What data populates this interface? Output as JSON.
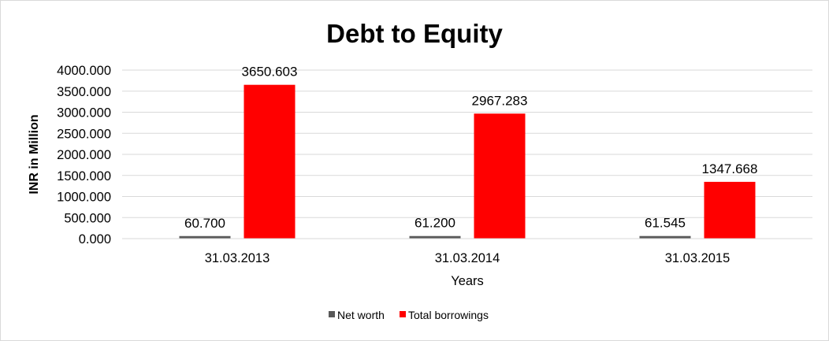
{
  "chart_data": {
    "type": "bar",
    "title": "Debt to Equity",
    "xlabel": "Years",
    "ylabel": "INR in Million",
    "categories": [
      "31.03.2013",
      "31.03.2014",
      "31.03.2015"
    ],
    "series": [
      {
        "name": "Net worth",
        "values": [
          60.7,
          61.2,
          61.545
        ],
        "labels": [
          "60.700",
          "61.200",
          "61.545"
        ],
        "color": "#595959"
      },
      {
        "name": "Total borrowings",
        "values": [
          3650.603,
          2967.283,
          1347.668
        ],
        "labels": [
          "3650.603",
          "2967.283",
          "1347.668"
        ],
        "color": "#ff0000"
      }
    ],
    "ylim": [
      0,
      4000
    ],
    "yticks": [
      0,
      500,
      1000,
      1500,
      2000,
      2500,
      3000,
      3500,
      4000
    ],
    "ytick_labels": [
      "0.000",
      "500.000",
      "1000.000",
      "1500.000",
      "2000.000",
      "2500.000",
      "3000.000",
      "3500.000",
      "4000.000"
    ],
    "grid": true,
    "gridline_color": "#d9d9d9",
    "legend_position": "bottom"
  }
}
